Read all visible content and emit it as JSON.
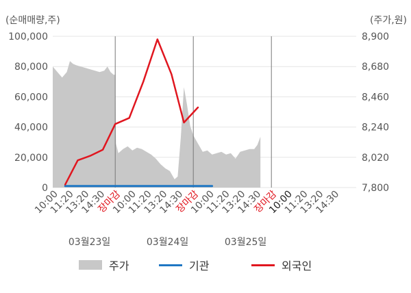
{
  "chart_data": {
    "type": "line",
    "left_unit": "(순매매량,주)",
    "right_unit": "(주가,원)",
    "left_ticks": [
      "100,000",
      "80,000",
      "60,000",
      "40,000",
      "20,000",
      "0"
    ],
    "left_tick_values": [
      100000,
      80000,
      60000,
      40000,
      20000,
      0
    ],
    "left_ylim": [
      0,
      100000
    ],
    "right_ticks": [
      "8,900",
      "8,680",
      "8,460",
      "8,240",
      "8,020",
      "7,800"
    ],
    "right_tick_values": [
      8900,
      8680,
      8460,
      8240,
      8020,
      7800
    ],
    "right_ylim": [
      7800,
      8900
    ],
    "x_tick_labels": [
      {
        "text": "10:00",
        "slot": 0,
        "color": "#555555"
      },
      {
        "text": "11:20",
        "slot": 1,
        "color": "#555555"
      },
      {
        "text": "13:20",
        "slot": 2,
        "color": "#555555"
      },
      {
        "text": "14:30",
        "slot": 3,
        "color": "#555555"
      },
      {
        "text": "장마감",
        "slot": 4,
        "color": "#e0161f"
      },
      {
        "text": "10:00",
        "slot": 5,
        "color": "#555555"
      },
      {
        "text": "11:20",
        "slot": 6,
        "color": "#555555"
      },
      {
        "text": "13:20",
        "slot": 7,
        "color": "#555555"
      },
      {
        "text": "14:30",
        "slot": 8,
        "color": "#555555"
      },
      {
        "text": "장마감",
        "slot": 9,
        "color": "#e0161f"
      },
      {
        "text": "10:00",
        "slot": 10,
        "color": "#555555"
      },
      {
        "text": "11:20",
        "slot": 11,
        "color": "#555555"
      },
      {
        "text": "13:20",
        "slot": 12,
        "color": "#555555"
      },
      {
        "text": "14:30",
        "slot": 13,
        "color": "#555555"
      },
      {
        "text": "장마감",
        "slot": 14,
        "color": "#e0161f"
      },
      {
        "text": "10:00",
        "slot": 15,
        "color": "#222222"
      },
      {
        "text": "11:20",
        "slot": 16,
        "color": "#555555"
      },
      {
        "text": "13:20",
        "slot": 17,
        "color": "#555555"
      },
      {
        "text": "14:30",
        "slot": 18,
        "color": "#555555"
      }
    ],
    "dates": [
      {
        "text": "03월23일",
        "slot": 2
      },
      {
        "text": "03월24일",
        "slot": 7
      },
      {
        "text": "03월25일",
        "slot": 12
      }
    ],
    "day_dividers": [
      4,
      9,
      14
    ],
    "series": [
      {
        "name": "주가",
        "kind": "area",
        "axis": "right",
        "color": "#c8c8c8",
        "points": [
          [
            0.0,
            8680
          ],
          [
            0.3,
            8640
          ],
          [
            0.6,
            8600
          ],
          [
            0.9,
            8640
          ],
          [
            1.1,
            8720
          ],
          [
            1.3,
            8700
          ],
          [
            1.5,
            8690
          ],
          [
            1.8,
            8680
          ],
          [
            2.1,
            8670
          ],
          [
            2.4,
            8660
          ],
          [
            2.7,
            8650
          ],
          [
            3.0,
            8640
          ],
          [
            3.3,
            8650
          ],
          [
            3.5,
            8680
          ],
          [
            3.7,
            8640
          ],
          [
            3.9,
            8620
          ],
          [
            4.0,
            8620
          ],
          [
            4.05,
            8120
          ],
          [
            4.2,
            8050
          ],
          [
            4.5,
            8080
          ],
          [
            4.8,
            8100
          ],
          [
            5.1,
            8070
          ],
          [
            5.4,
            8090
          ],
          [
            5.7,
            8080
          ],
          [
            6.0,
            8060
          ],
          [
            6.3,
            8040
          ],
          [
            6.6,
            8010
          ],
          [
            6.9,
            7970
          ],
          [
            7.2,
            7940
          ],
          [
            7.5,
            7920
          ],
          [
            7.8,
            7860
          ],
          [
            8.0,
            7880
          ],
          [
            8.2,
            8170
          ],
          [
            8.4,
            8530
          ],
          [
            8.6,
            8400
          ],
          [
            8.8,
            8250
          ],
          [
            9.0,
            8180
          ],
          [
            9.3,
            8120
          ],
          [
            9.6,
            8060
          ],
          [
            9.9,
            8070
          ],
          [
            10.2,
            8040
          ],
          [
            10.5,
            8050
          ],
          [
            10.8,
            8060
          ],
          [
            11.1,
            8040
          ],
          [
            11.4,
            8050
          ],
          [
            11.7,
            8010
          ],
          [
            12.0,
            8060
          ],
          [
            12.3,
            8070
          ],
          [
            12.6,
            8080
          ],
          [
            12.9,
            8080
          ],
          [
            13.1,
            8110
          ],
          [
            13.3,
            8170
          ]
        ]
      },
      {
        "name": "기관",
        "kind": "line",
        "axis": "left",
        "color": "#1f77c4",
        "points": [
          [
            0.8,
            1000
          ],
          [
            4.0,
            1000
          ],
          [
            9.0,
            1000
          ],
          [
            10.2,
            1000
          ]
        ]
      },
      {
        "name": "외국인",
        "kind": "line",
        "axis": "left",
        "color": "#e0161f",
        "points": [
          [
            0.8,
            2000
          ],
          [
            1.6,
            18000
          ],
          [
            2.4,
            21000
          ],
          [
            3.2,
            25000
          ],
          [
            4.0,
            42000
          ],
          [
            4.9,
            46000
          ],
          [
            5.8,
            70000
          ],
          [
            6.7,
            98000
          ],
          [
            7.6,
            75000
          ],
          [
            8.4,
            43000
          ],
          [
            9.3,
            53000
          ]
        ]
      }
    ],
    "legend": [
      "주가",
      "기관",
      "외국인"
    ]
  }
}
